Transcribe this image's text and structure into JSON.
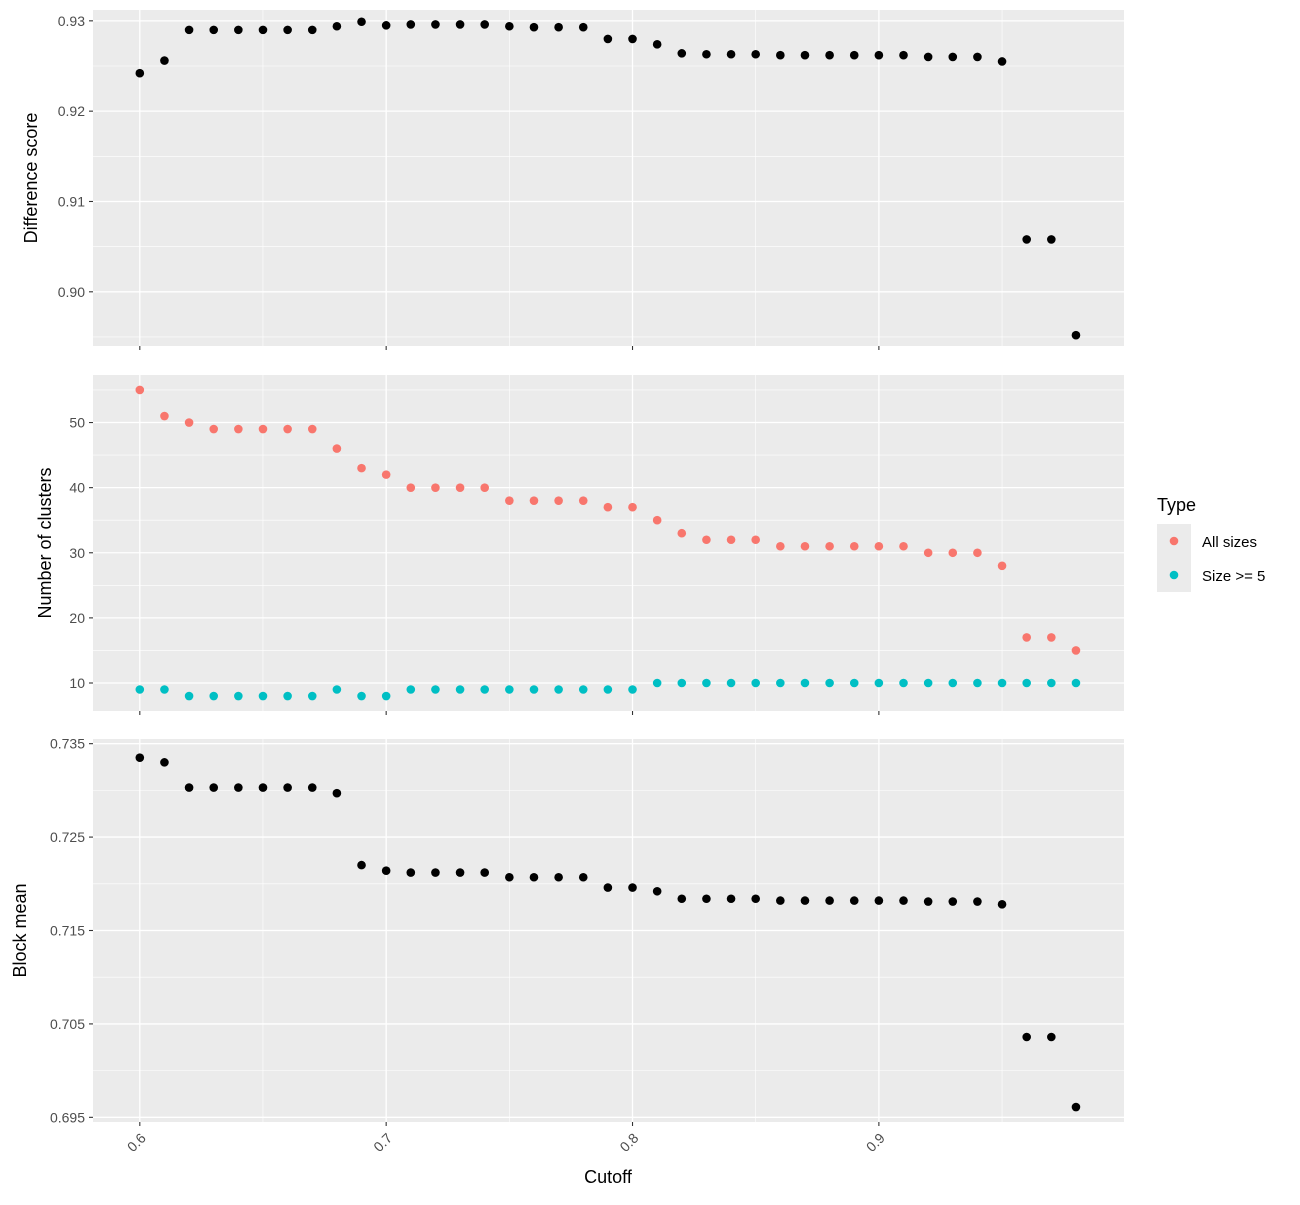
{
  "chart_data": {
    "type": "scatter",
    "xlabel": "Cutoff",
    "x_ticks": [
      "0.6",
      "0.7",
      "0.8",
      "0.9"
    ],
    "x_tick_values": [
      0.6,
      0.7,
      0.8,
      0.9
    ],
    "xlim": [
      0.581,
      0.9995
    ],
    "x": [
      0.6,
      0.61,
      0.62,
      0.63,
      0.64,
      0.65,
      0.66,
      0.67,
      0.68,
      0.69,
      0.7,
      0.71,
      0.72,
      0.73,
      0.74,
      0.75,
      0.76,
      0.77,
      0.78,
      0.79,
      0.8,
      0.81,
      0.82,
      0.83,
      0.84,
      0.85,
      0.86,
      0.87,
      0.88,
      0.89,
      0.9,
      0.91,
      0.92,
      0.93,
      0.94,
      0.95,
      0.96,
      0.97,
      0.98
    ],
    "legend": {
      "title": "Type",
      "position": "right",
      "items": [
        {
          "label": "All sizes",
          "color": "#F8766D"
        },
        {
          "label": "Size >= 5",
          "color": "#00BFC4"
        }
      ]
    },
    "panels": [
      {
        "ylabel": "Difference score",
        "ylim": [
          0.894,
          0.9312
        ],
        "y_ticks": [
          "0.90",
          "0.91",
          "0.92",
          "0.93"
        ],
        "y_tick_values": [
          0.9,
          0.91,
          0.92,
          0.93
        ],
        "series": [
          {
            "color": "#000000",
            "values": [
              0.9242,
              0.9256,
              0.929,
              0.929,
              0.929,
              0.929,
              0.929,
              0.929,
              0.9294,
              0.9299,
              0.9295,
              0.9296,
              0.9296,
              0.9296,
              0.9296,
              0.9294,
              0.9293,
              0.9293,
              0.9293,
              0.928,
              0.928,
              0.9274,
              0.9264,
              0.9263,
              0.9263,
              0.9263,
              0.9262,
              0.9262,
              0.9262,
              0.9262,
              0.9262,
              0.9262,
              0.926,
              0.926,
              0.926,
              0.9255,
              0.9058,
              0.9058,
              0.8952
            ]
          }
        ]
      },
      {
        "ylabel": "Number of clusters",
        "ylim": [
          5.7,
          57.3
        ],
        "y_ticks": [
          "10",
          "20",
          "30",
          "40",
          "50"
        ],
        "y_tick_values": [
          10,
          20,
          30,
          40,
          50
        ],
        "series": [
          {
            "name": "All sizes",
            "color": "#F8766D",
            "values": [
              55,
              51,
              50,
              49,
              49,
              49,
              49,
              49,
              46,
              43,
              42,
              40,
              40,
              40,
              40,
              38,
              38,
              38,
              38,
              37,
              37,
              35,
              33,
              32,
              32,
              32,
              31,
              31,
              31,
              31,
              31,
              31,
              30,
              30,
              30,
              28,
              17,
              17,
              15
            ]
          },
          {
            "name": "Size >= 5",
            "color": "#00BFC4",
            "values": [
              9,
              9,
              8,
              8,
              8,
              8,
              8,
              8,
              9,
              8,
              8,
              9,
              9,
              9,
              9,
              9,
              9,
              9,
              9,
              9,
              9,
              10,
              10,
              10,
              10,
              10,
              10,
              10,
              10,
              10,
              10,
              10,
              10,
              10,
              10,
              10,
              10,
              10,
              10
            ]
          }
        ]
      },
      {
        "ylabel": "Block mean",
        "ylim": [
          0.6945,
          0.7355
        ],
        "y_ticks": [
          "0.695",
          "0.705",
          "0.715",
          "0.725",
          "0.735"
        ],
        "y_tick_values": [
          0.695,
          0.705,
          0.715,
          0.725,
          0.735
        ],
        "series": [
          {
            "color": "#000000",
            "values": [
              0.7335,
              0.733,
              0.7303,
              0.7303,
              0.7303,
              0.7303,
              0.7303,
              0.7303,
              0.7297,
              0.722,
              0.7214,
              0.7212,
              0.7212,
              0.7212,
              0.7212,
              0.7207,
              0.7207,
              0.7207,
              0.7207,
              0.7196,
              0.7196,
              0.7192,
              0.7184,
              0.7184,
              0.7184,
              0.7184,
              0.7182,
              0.7182,
              0.7182,
              0.7182,
              0.7182,
              0.7182,
              0.7181,
              0.7181,
              0.7181,
              0.7178,
              0.7036,
              0.7036,
              0.6961
            ]
          }
        ]
      }
    ]
  }
}
